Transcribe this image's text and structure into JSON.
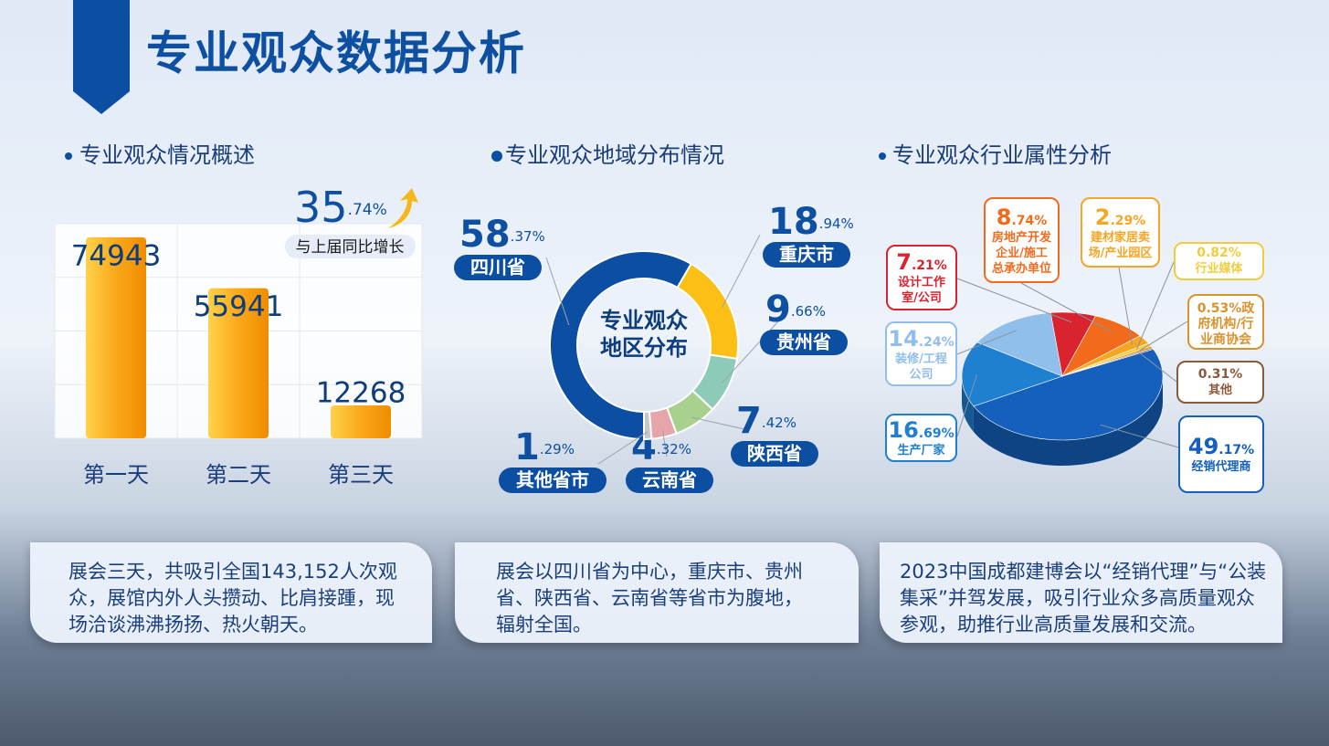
{
  "title": "专业观众数据分析",
  "chart_data": [
    {
      "type": "bar",
      "title": "专业观众情况概述",
      "categories": [
        "第一天",
        "第二天",
        "第三天"
      ],
      "values": [
        74943,
        55941,
        12268
      ],
      "color": "#fba81a",
      "ylim": [
        0,
        80000
      ],
      "grid": true,
      "annotation": {
        "value_label": [
          "35",
          ".74%"
        ],
        "text": "与上届同比增长"
      }
    },
    {
      "type": "donut",
      "title": "专业观众地域分布情况",
      "center_label": [
        "专业观众",
        "地区分布"
      ],
      "categories": [
        "四川省",
        "重庆市",
        "贵州省",
        "陕西省",
        "云南省",
        "其他省市"
      ],
      "values": [
        58.37,
        18.94,
        9.66,
        7.42,
        4.32,
        1.29
      ],
      "value_labels": [
        [
          "58",
          ".37%"
        ],
        [
          "18",
          ".94%"
        ],
        [
          "9",
          ".66%"
        ],
        [
          "7",
          ".42%"
        ],
        [
          "4",
          ".32%"
        ],
        [
          "1",
          ".29%"
        ]
      ],
      "colors": [
        "#0b4ea2",
        "#fbbf16",
        "#8ecab8",
        "#a9d18e",
        "#e6a5a8",
        "#c8c8c8"
      ]
    },
    {
      "type": "pie3d",
      "title": "专业观众行业属性分析",
      "categories": [
        "经销代理商",
        "生产厂家",
        "装修/工程公司",
        "设计工作室/公司",
        "房地产开发企业/施工总承办单位",
        "建材家居卖场/产业园区",
        "行业媒体",
        "政府机构/行业商协会",
        "其他"
      ],
      "values": [
        49.17,
        16.69,
        14.24,
        7.21,
        8.74,
        2.29,
        0.82,
        0.53,
        0.31
      ],
      "value_labels": [
        [
          "49",
          ".17%"
        ],
        [
          "16",
          ".69%"
        ],
        [
          "14",
          ".24%"
        ],
        [
          "7",
          ".21%"
        ],
        [
          "8",
          ".74%"
        ],
        [
          "2",
          ".29%"
        ],
        [
          "0.82%"
        ],
        [
          "0.53%"
        ],
        [
          "0.31%"
        ]
      ],
      "colors": [
        "#1560bd",
        "#1f7fd1",
        "#8fbfea",
        "#d9232f",
        "#f26b1d",
        "#f5a623",
        "#f2cc3a",
        "#d9922c",
        "#8b5a3c"
      ]
    }
  ],
  "notes": [
    "展会三天，共吸引全国143,152人次观众，展馆内外人头攒动、比肩接踵，现场洽谈沸沸扬扬、热火朝天。",
    "展会以四川省为中心，重庆市、贵州省、陕西省、云南省等省市为腹地，辐射全国。",
    "2023中国成都建博会以“经销代理”与“公装集采”并驾发展，吸引行业众多高质量观众参观，助推行业高质量发展和交流。"
  ]
}
